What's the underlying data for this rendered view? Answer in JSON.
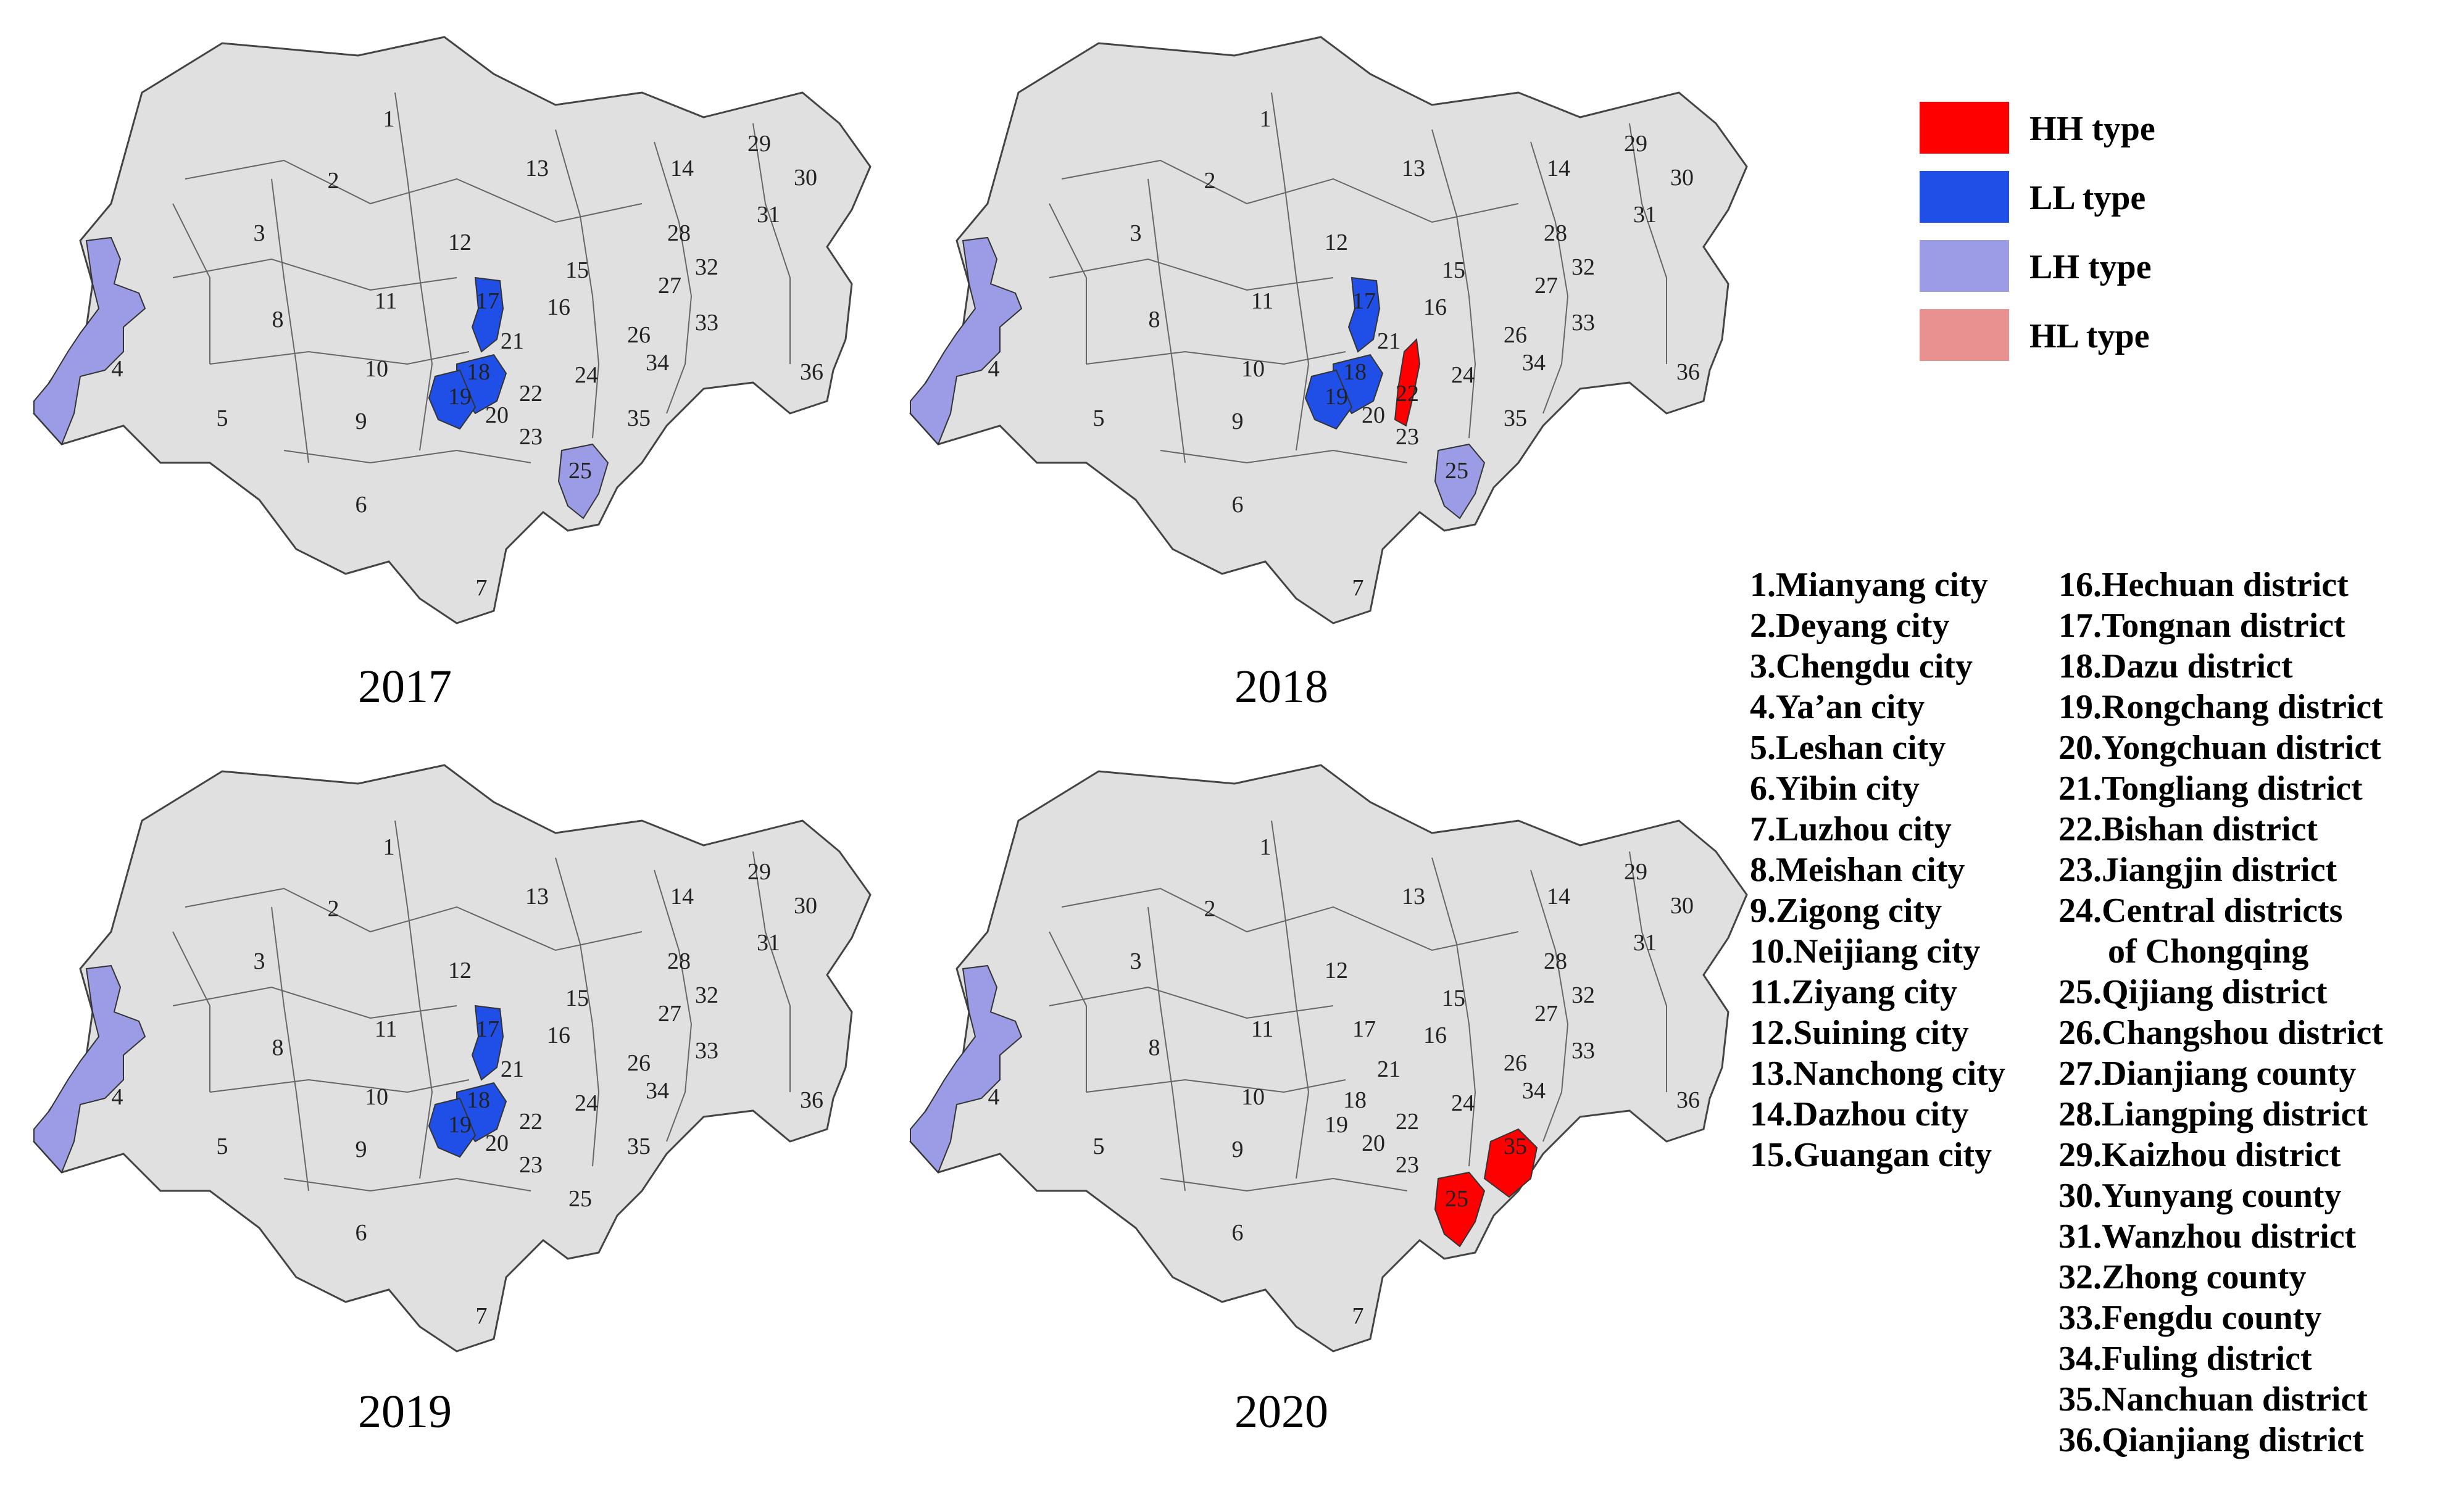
{
  "maps": [
    {
      "year": "2017",
      "labels": [
        "1",
        "2",
        "3",
        "4",
        "5",
        "6",
        "7",
        "8",
        "9",
        "10",
        "11",
        "12",
        "13",
        "14",
        "15",
        "16",
        "17",
        "18",
        "19",
        "20",
        "21",
        "22",
        "23",
        "24",
        "25",
        "26",
        "27",
        "28",
        "29",
        "30",
        "31",
        "32",
        "33",
        "34",
        "35",
        "36"
      ],
      "highlights": {
        "4": "LH",
        "17": "LL",
        "18": "LL",
        "19": "LL",
        "25": "LH"
      }
    },
    {
      "year": "2018",
      "labels": [
        "1",
        "2",
        "3",
        "4",
        "5",
        "6",
        "7",
        "8",
        "9",
        "10",
        "11",
        "12",
        "13",
        "14",
        "15",
        "16",
        "17",
        "18",
        "19",
        "20",
        "21",
        "22",
        "23",
        "24",
        "25",
        "26",
        "27",
        "28",
        "29",
        "30",
        "31",
        "32",
        "33",
        "34",
        "35",
        "36"
      ],
      "highlights": {
        "4": "LH",
        "17": "LL",
        "18": "LL",
        "19": "LL",
        "22": "HH",
        "25": "LH"
      }
    },
    {
      "year": "2019",
      "labels": [
        "1",
        "2",
        "3",
        "4",
        "5",
        "6",
        "7",
        "8",
        "9",
        "10",
        "11",
        "12",
        "13",
        "14",
        "15",
        "16",
        "17",
        "18",
        "19",
        "20",
        "21",
        "22",
        "23",
        "24",
        "25",
        "26",
        "27",
        "28",
        "29",
        "30",
        "31",
        "32",
        "33",
        "34",
        "35",
        "36"
      ],
      "highlights": {
        "4": "LH",
        "17": "LL",
        "18": "LL",
        "19": "LL"
      }
    },
    {
      "year": "2020",
      "labels": [
        "1",
        "2",
        "3",
        "4",
        "5",
        "6",
        "7",
        "8",
        "9",
        "10",
        "11",
        "12",
        "13",
        "14",
        "15",
        "16",
        "17",
        "18",
        "19",
        "20",
        "21",
        "22",
        "23",
        "24",
        "25",
        "26",
        "27",
        "28",
        "29",
        "30",
        "31",
        "32",
        "33",
        "34",
        "35",
        "36"
      ],
      "highlights": {
        "4": "LH",
        "25": "HH",
        "35": "HH"
      }
    }
  ],
  "legend": [
    {
      "label": "HH type",
      "color": "#ff0000"
    },
    {
      "label": "LL type",
      "color": "#1f4fe6"
    },
    {
      "label": "LH type",
      "color": "#9c9ce6"
    },
    {
      "label": "HL type",
      "color": "#e99090"
    }
  ],
  "base_color": "#e0e0e0",
  "names_left": [
    "1.Mianyang city",
    "2.Deyang city",
    "3.Chengdu city",
    "4.Ya’an city",
    "5.Leshan city",
    "6.Yibin city",
    "7.Luzhou city",
    "8.Meishan city",
    "9.Zigong city",
    "10.Neijiang city",
    "11.Ziyang city",
    "12.Suining city",
    "13.Nanchong city",
    "14.Dazhou city",
    "15.Guangan city"
  ],
  "names_right": [
    "16.Hechuan district",
    "17.Tongnan district",
    "18.Dazu district",
    "19.Rongchang district",
    "20.Yongchuan district",
    "21.Tongliang district",
    "22.Bishan district",
    "23.Jiangjin district",
    "24.Central districts",
    "of Chongqing",
    "25.Qijiang district",
    "26.Changshou district",
    "27.Dianjiang county",
    "28.Liangping district",
    "29.Kaizhou district",
    "30.Yunyang county",
    "31.Wanzhou district",
    "32.Zhong county",
    "33.Fengdu county",
    "34.Fuling district",
    "35.Nanchuan district",
    "36.Qianjiang district"
  ]
}
